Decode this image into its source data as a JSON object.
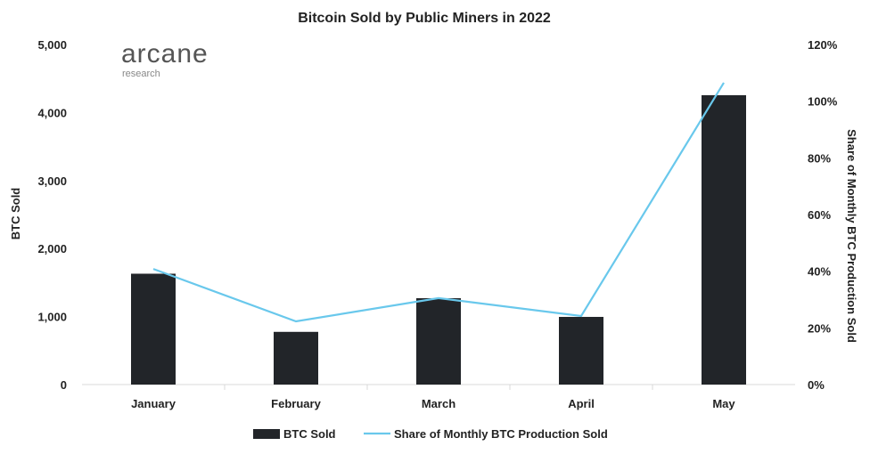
{
  "chart_data": {
    "type": "bar",
    "title": "Bitcoin Sold by Public Miners in 2022",
    "categories": [
      "January",
      "February",
      "March",
      "April",
      "May"
    ],
    "series": [
      {
        "name": "BTC Sold",
        "type": "bar",
        "axis": "left",
        "color": "#222529",
        "values": [
          1630,
          775,
          1270,
          995,
          4255
        ]
      },
      {
        "name": "Share of Monthly BTC Production Sold",
        "type": "line",
        "axis": "right",
        "color": "#69c8ec",
        "values": [
          40.8,
          22.3,
          30.5,
          24.2,
          106.5
        ]
      }
    ],
    "ylabel": "BTC Sold",
    "ylabel_right": "Share of Monthly BTC Production Sold",
    "ylim": [
      0,
      5000
    ],
    "ylim_right": [
      0,
      120
    ],
    "yticks": [
      "0",
      "1,000",
      "2,000",
      "3,000",
      "4,000",
      "5,000"
    ],
    "yticks_right": [
      "0%",
      "20%",
      "40%",
      "60%",
      "80%",
      "100%",
      "120%"
    ],
    "legend": "bottom",
    "grid": false
  },
  "logo": {
    "name": "arcane",
    "sub": "research"
  }
}
